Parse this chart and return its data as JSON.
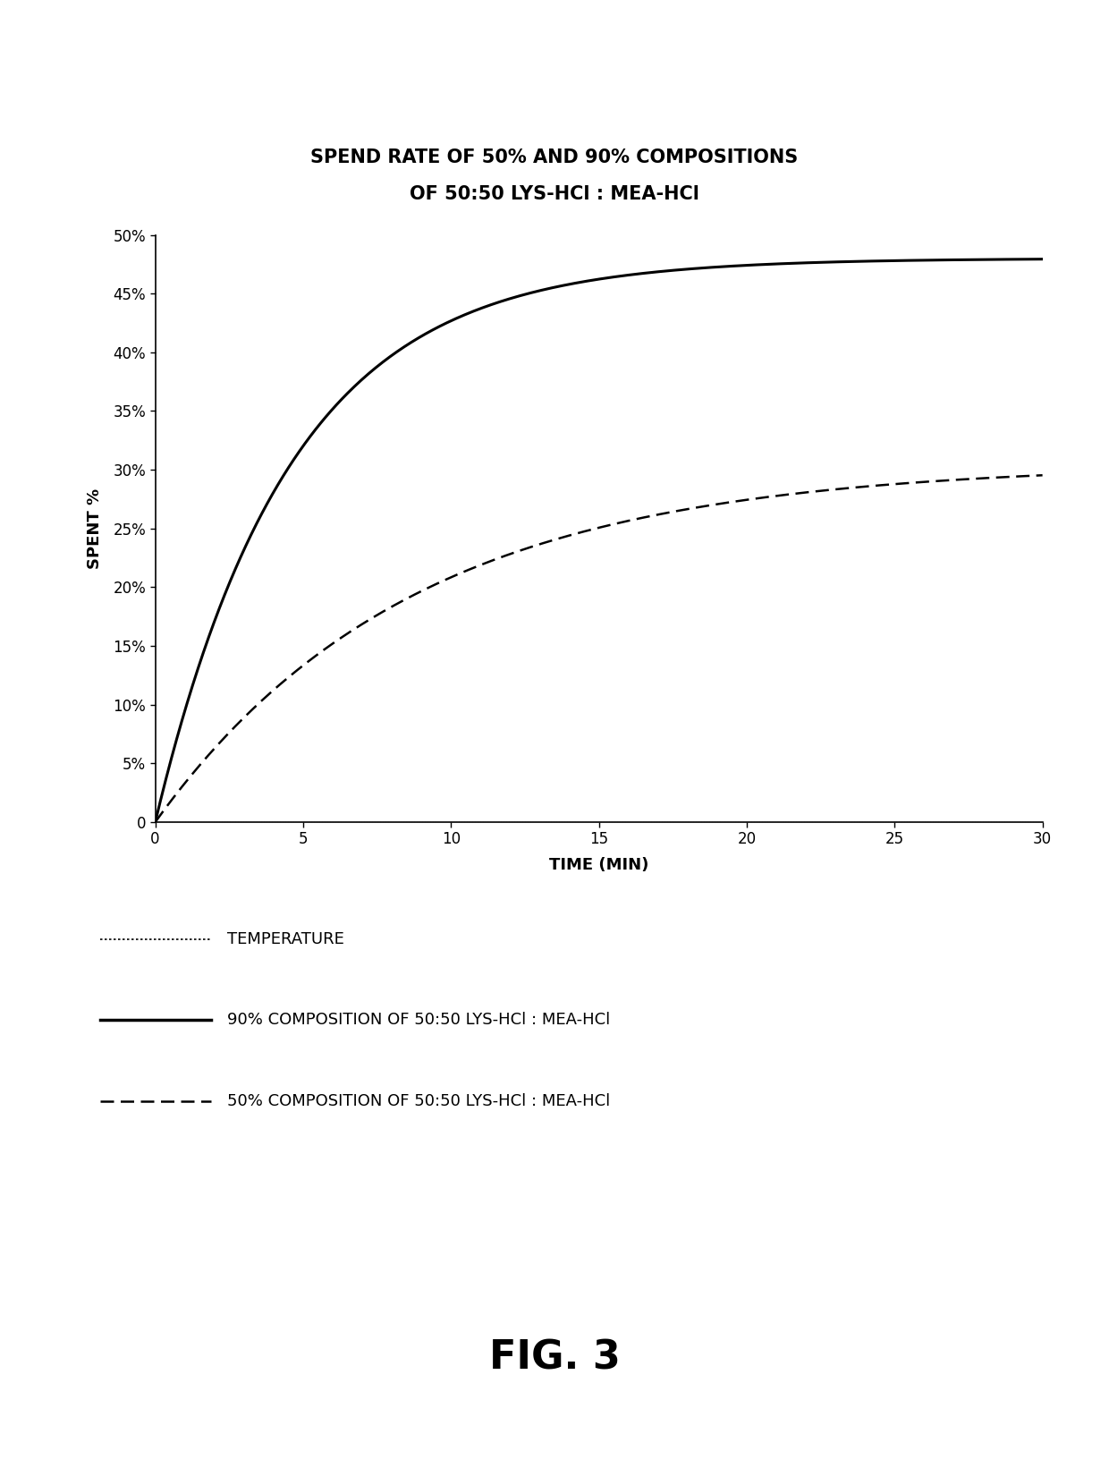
{
  "title_line1": "SPEND RATE OF 50% AND 90% COMPOSITIONS",
  "title_line2": "OF 50:50 LYS-HCl : MEA-HCl",
  "xlabel": "TIME (MIN)",
  "ylabel": "SPENT %",
  "xlim": [
    0,
    30
  ],
  "ylim": [
    0,
    50
  ],
  "xticks": [
    0,
    5,
    10,
    15,
    20,
    25,
    30
  ],
  "yticks": [
    0,
    5,
    10,
    15,
    20,
    25,
    30,
    35,
    40,
    45,
    50
  ],
  "fig_label": "FIG. 3",
  "curve_90_params": {
    "a": 48.0,
    "b": 0.22
  },
  "curve_50_params": {
    "a": 30.5,
    "b": 0.115
  },
  "background_color": "#ffffff",
  "text_color": "#000000",
  "title_fontsize": 15,
  "axis_label_fontsize": 13,
  "tick_fontsize": 12,
  "legend_fontsize": 13,
  "fig_label_fontsize": 32
}
